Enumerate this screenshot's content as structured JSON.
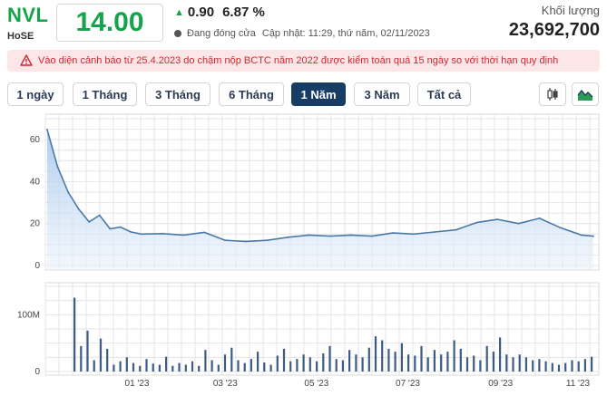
{
  "header": {
    "ticker": "NVL",
    "exchange": "HoSE",
    "price": "14.00",
    "change": "0.90",
    "change_pct": "6.87 %",
    "status": "Đang đóng cửa",
    "updated": "Cập nhật: 11:29, thứ năm, 02/11/2023",
    "volume_label": "Khối lượng",
    "volume_value": "23,692,700"
  },
  "warning": {
    "text": "Vào diện cảnh báo từ 25.4.2023 do chậm nộp BCTC năm 2022 được kiểm toán quá 15 ngày so với thời hạn quy định"
  },
  "tabs": [
    {
      "label": "1 ngày",
      "active": false
    },
    {
      "label": "1 Tháng",
      "active": false
    },
    {
      "label": "3 Tháng",
      "active": false
    },
    {
      "label": "6 Tháng",
      "active": false
    },
    {
      "label": "1 Năm",
      "active": true
    },
    {
      "label": "3 Năm",
      "active": false
    },
    {
      "label": "Tất cả",
      "active": false
    }
  ],
  "tools": [
    {
      "icon": "candlestick-icon"
    },
    {
      "icon": "area-chart-icon"
    }
  ],
  "colors": {
    "up": "#17a34a",
    "price_line": "#4a79a6",
    "area_top": "#a9c8ec",
    "volume_bar": "#3d5c83",
    "grid": "#e4e4e4",
    "active_tab": "#173d66",
    "warning_bg": "#fde6e7",
    "warning_text": "#d3262f"
  },
  "chart_data": [
    {
      "type": "area",
      "title": "",
      "ylabel": "",
      "ylim": [
        0,
        70
      ],
      "yticks": [
        0,
        20,
        40,
        60
      ],
      "grid": true,
      "x": [
        "2022-11-02",
        "2022-11-09",
        "2022-11-16",
        "2022-11-23",
        "2022-11-30",
        "2022-12-07",
        "2022-12-14",
        "2022-12-21",
        "2022-12-28",
        "2023-01-04",
        "2023-01-18",
        "2023-02-01",
        "2023-02-15",
        "2023-03-01",
        "2023-03-15",
        "2023-03-29",
        "2023-04-12",
        "2023-04-26",
        "2023-05-10",
        "2023-05-24",
        "2023-06-07",
        "2023-06-21",
        "2023-07-05",
        "2023-07-19",
        "2023-08-02",
        "2023-08-16",
        "2023-08-30",
        "2023-09-13",
        "2023-09-27",
        "2023-10-11",
        "2023-10-25",
        "2023-11-02"
      ],
      "series": [
        {
          "values": [
            64.8,
            47,
            35,
            27,
            20.8,
            24,
            17.5,
            18.3,
            16,
            15,
            15.2,
            14.5,
            15.8,
            12,
            11.5,
            12,
            13.5,
            14.5,
            14,
            14.5,
            14,
            15.5,
            15,
            16,
            17,
            20.5,
            22,
            20,
            22.5,
            18,
            14.5,
            14
          ]
        }
      ]
    },
    {
      "type": "bar",
      "title": "",
      "ylabel": "",
      "ylim": [
        0,
        150
      ],
      "yticks": [
        0,
        100
      ],
      "ytick_labels": [
        "0",
        "100M"
      ],
      "xticks": [
        "01 '23",
        "03 '23",
        "05 '23",
        "07 '23",
        "09 '23",
        "11 '23"
      ],
      "grid": true,
      "series": [
        {
          "values": [
            130,
            45,
            72,
            20,
            58,
            40,
            12,
            18,
            25,
            15,
            10,
            22,
            14,
            12,
            26,
            10,
            15,
            12,
            18,
            10,
            38,
            20,
            12,
            30,
            42,
            20,
            15,
            22,
            35,
            16,
            12,
            28,
            40,
            18,
            22,
            30,
            25,
            18,
            32,
            45,
            22,
            20,
            38,
            30,
            25,
            42,
            62,
            55,
            40,
            35,
            50,
            30,
            28,
            45,
            25,
            38,
            30,
            35,
            55,
            40,
            25,
            28,
            20,
            45,
            35,
            60,
            30,
            25,
            30,
            25,
            20,
            22,
            18,
            15,
            12,
            15,
            20,
            18,
            22,
            26
          ]
        }
      ]
    }
  ]
}
